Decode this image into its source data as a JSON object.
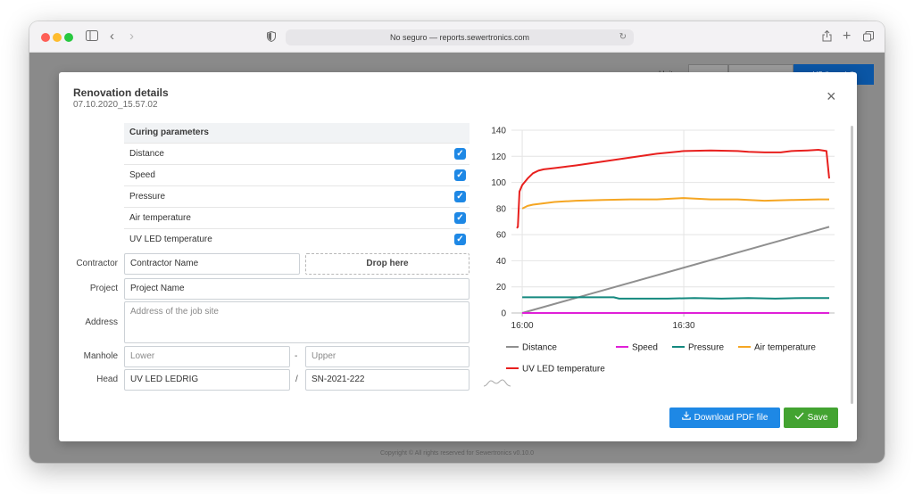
{
  "browser": {
    "url_text": "No seguro — reports.sewertronics.com"
  },
  "background": {
    "units_label": "Units",
    "unit_buttons": [
      "Auto",
      "SI (metric)",
      "US (imperial)"
    ],
    "footer": "Copyright © All rights reserved for Sewertronics v0.10.0"
  },
  "modal": {
    "title": "Renovation details",
    "subtitle": "07.10.2020_15.57.02",
    "curing_header": "Curing parameters",
    "curing_params": [
      {
        "label": "Distance",
        "checked": true
      },
      {
        "label": "Speed",
        "checked": true
      },
      {
        "label": "Pressure",
        "checked": true
      },
      {
        "label": "Air temperature",
        "checked": true
      },
      {
        "label": "UV LED temperature",
        "checked": true
      }
    ],
    "form": {
      "contractor_label": "Contractor",
      "contractor_value": "Contractor Name",
      "drop_label": "Drop here",
      "project_label": "Project",
      "project_value": "Project Name",
      "address_label": "Address",
      "address_placeholder": "Address of the job site",
      "manhole_label": "Manhole",
      "manhole_lower_placeholder": "Lower",
      "manhole_separator": "-",
      "manhole_upper_placeholder": "Upper",
      "head_label": "Head",
      "head_value": "UV LED LEDRIG",
      "head_separator": "/",
      "head_serial": "SN-2021-222"
    },
    "download_button": "Download PDF file",
    "save_button": "Save"
  },
  "chart_data": {
    "type": "line",
    "x_ticks": [
      "16:00",
      "16:30"
    ],
    "x_range_minutes": [
      -2,
      58
    ],
    "x_tick_minutes": [
      0,
      30
    ],
    "ylim": [
      0,
      140
    ],
    "y_ticks": [
      0,
      20,
      40,
      60,
      80,
      100,
      120,
      140
    ],
    "grid": true,
    "legend_position": "bottom",
    "series": [
      {
        "name": "Distance",
        "color": "#8f8f8f",
        "x": [
          0,
          57
        ],
        "y": [
          0,
          66
        ]
      },
      {
        "name": "Speed",
        "color": "#e020d8",
        "x": [
          0,
          57
        ],
        "y": [
          0,
          0
        ]
      },
      {
        "name": "Pressure",
        "color": "#14897f",
        "x": [
          0,
          5,
          10,
          15,
          17,
          18,
          22,
          27,
          32,
          37,
          42,
          47,
          52,
          57
        ],
        "y": [
          12,
          12,
          12,
          12,
          12,
          11,
          11,
          11,
          11.5,
          11,
          11.5,
          11,
          11.5,
          11.5
        ]
      },
      {
        "name": "Air temperature",
        "color": "#f5a623",
        "x": [
          0,
          1,
          2,
          4,
          6,
          8,
          10,
          15,
          20,
          25,
          30,
          35,
          40,
          45,
          50,
          55,
          57
        ],
        "y": [
          80,
          82,
          83,
          84,
          85,
          85.5,
          86,
          86.5,
          87,
          87,
          88,
          87,
          87,
          86,
          86.5,
          87,
          87
        ]
      },
      {
        "name": "UV LED temperature",
        "color": "#e8201e",
        "x": [
          -1,
          -0.8,
          -0.5,
          0,
          1,
          2,
          3,
          4,
          6,
          8,
          10,
          15,
          20,
          25,
          30,
          35,
          40,
          42,
          45,
          48,
          50,
          53,
          55,
          56.5,
          57
        ],
        "y": [
          65,
          66,
          93,
          98,
          103,
          107,
          109,
          110,
          111,
          112,
          113,
          116,
          119,
          122,
          124,
          124.5,
          124,
          123.5,
          123,
          123,
          124,
          124.5,
          125,
          124,
          103
        ]
      }
    ]
  }
}
